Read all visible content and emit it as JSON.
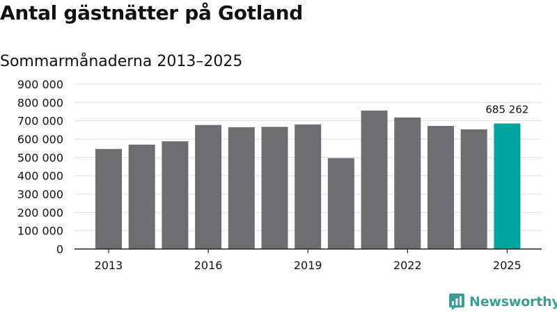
{
  "title": "Antal gästnätter på Gotland",
  "subtitle": "Sommarmånaderna 2013–2025",
  "brand": {
    "name": "Newsworthy",
    "color": "#3a9e94",
    "icon": "newsworthy-logo-icon"
  },
  "colors": {
    "bar": "#6e6d73",
    "highlight": "#00a39b",
    "grid": "#dddddd",
    "axis": "#222222"
  },
  "chart_data": {
    "type": "bar",
    "title": "Antal gästnätter på Gotland",
    "subtitle": "Sommarmånaderna 2013–2025",
    "categories": [
      "2013",
      "2014",
      "2015",
      "2016",
      "2017",
      "2018",
      "2019",
      "2020",
      "2021",
      "2022",
      "2023",
      "2024",
      "2025"
    ],
    "values": [
      546000,
      570000,
      588000,
      677000,
      665000,
      667000,
      680000,
      496000,
      756000,
      718000,
      672000,
      653000,
      685262
    ],
    "highlight_index": 12,
    "highlight_label": "685 262",
    "xtick_labels": [
      "2013",
      "2016",
      "2019",
      "2022",
      "2025"
    ],
    "yticks": [
      0,
      100000,
      200000,
      300000,
      400000,
      500000,
      600000,
      700000,
      800000,
      900000
    ],
    "ytick_labels": [
      "0",
      "100 000",
      "200 000",
      "300 000",
      "400 000",
      "500 000",
      "600 000",
      "700 000",
      "800 000",
      "900 000"
    ],
    "ylim": [
      0,
      900000
    ],
    "xlabel": "",
    "ylabel": "",
    "grid": true
  }
}
